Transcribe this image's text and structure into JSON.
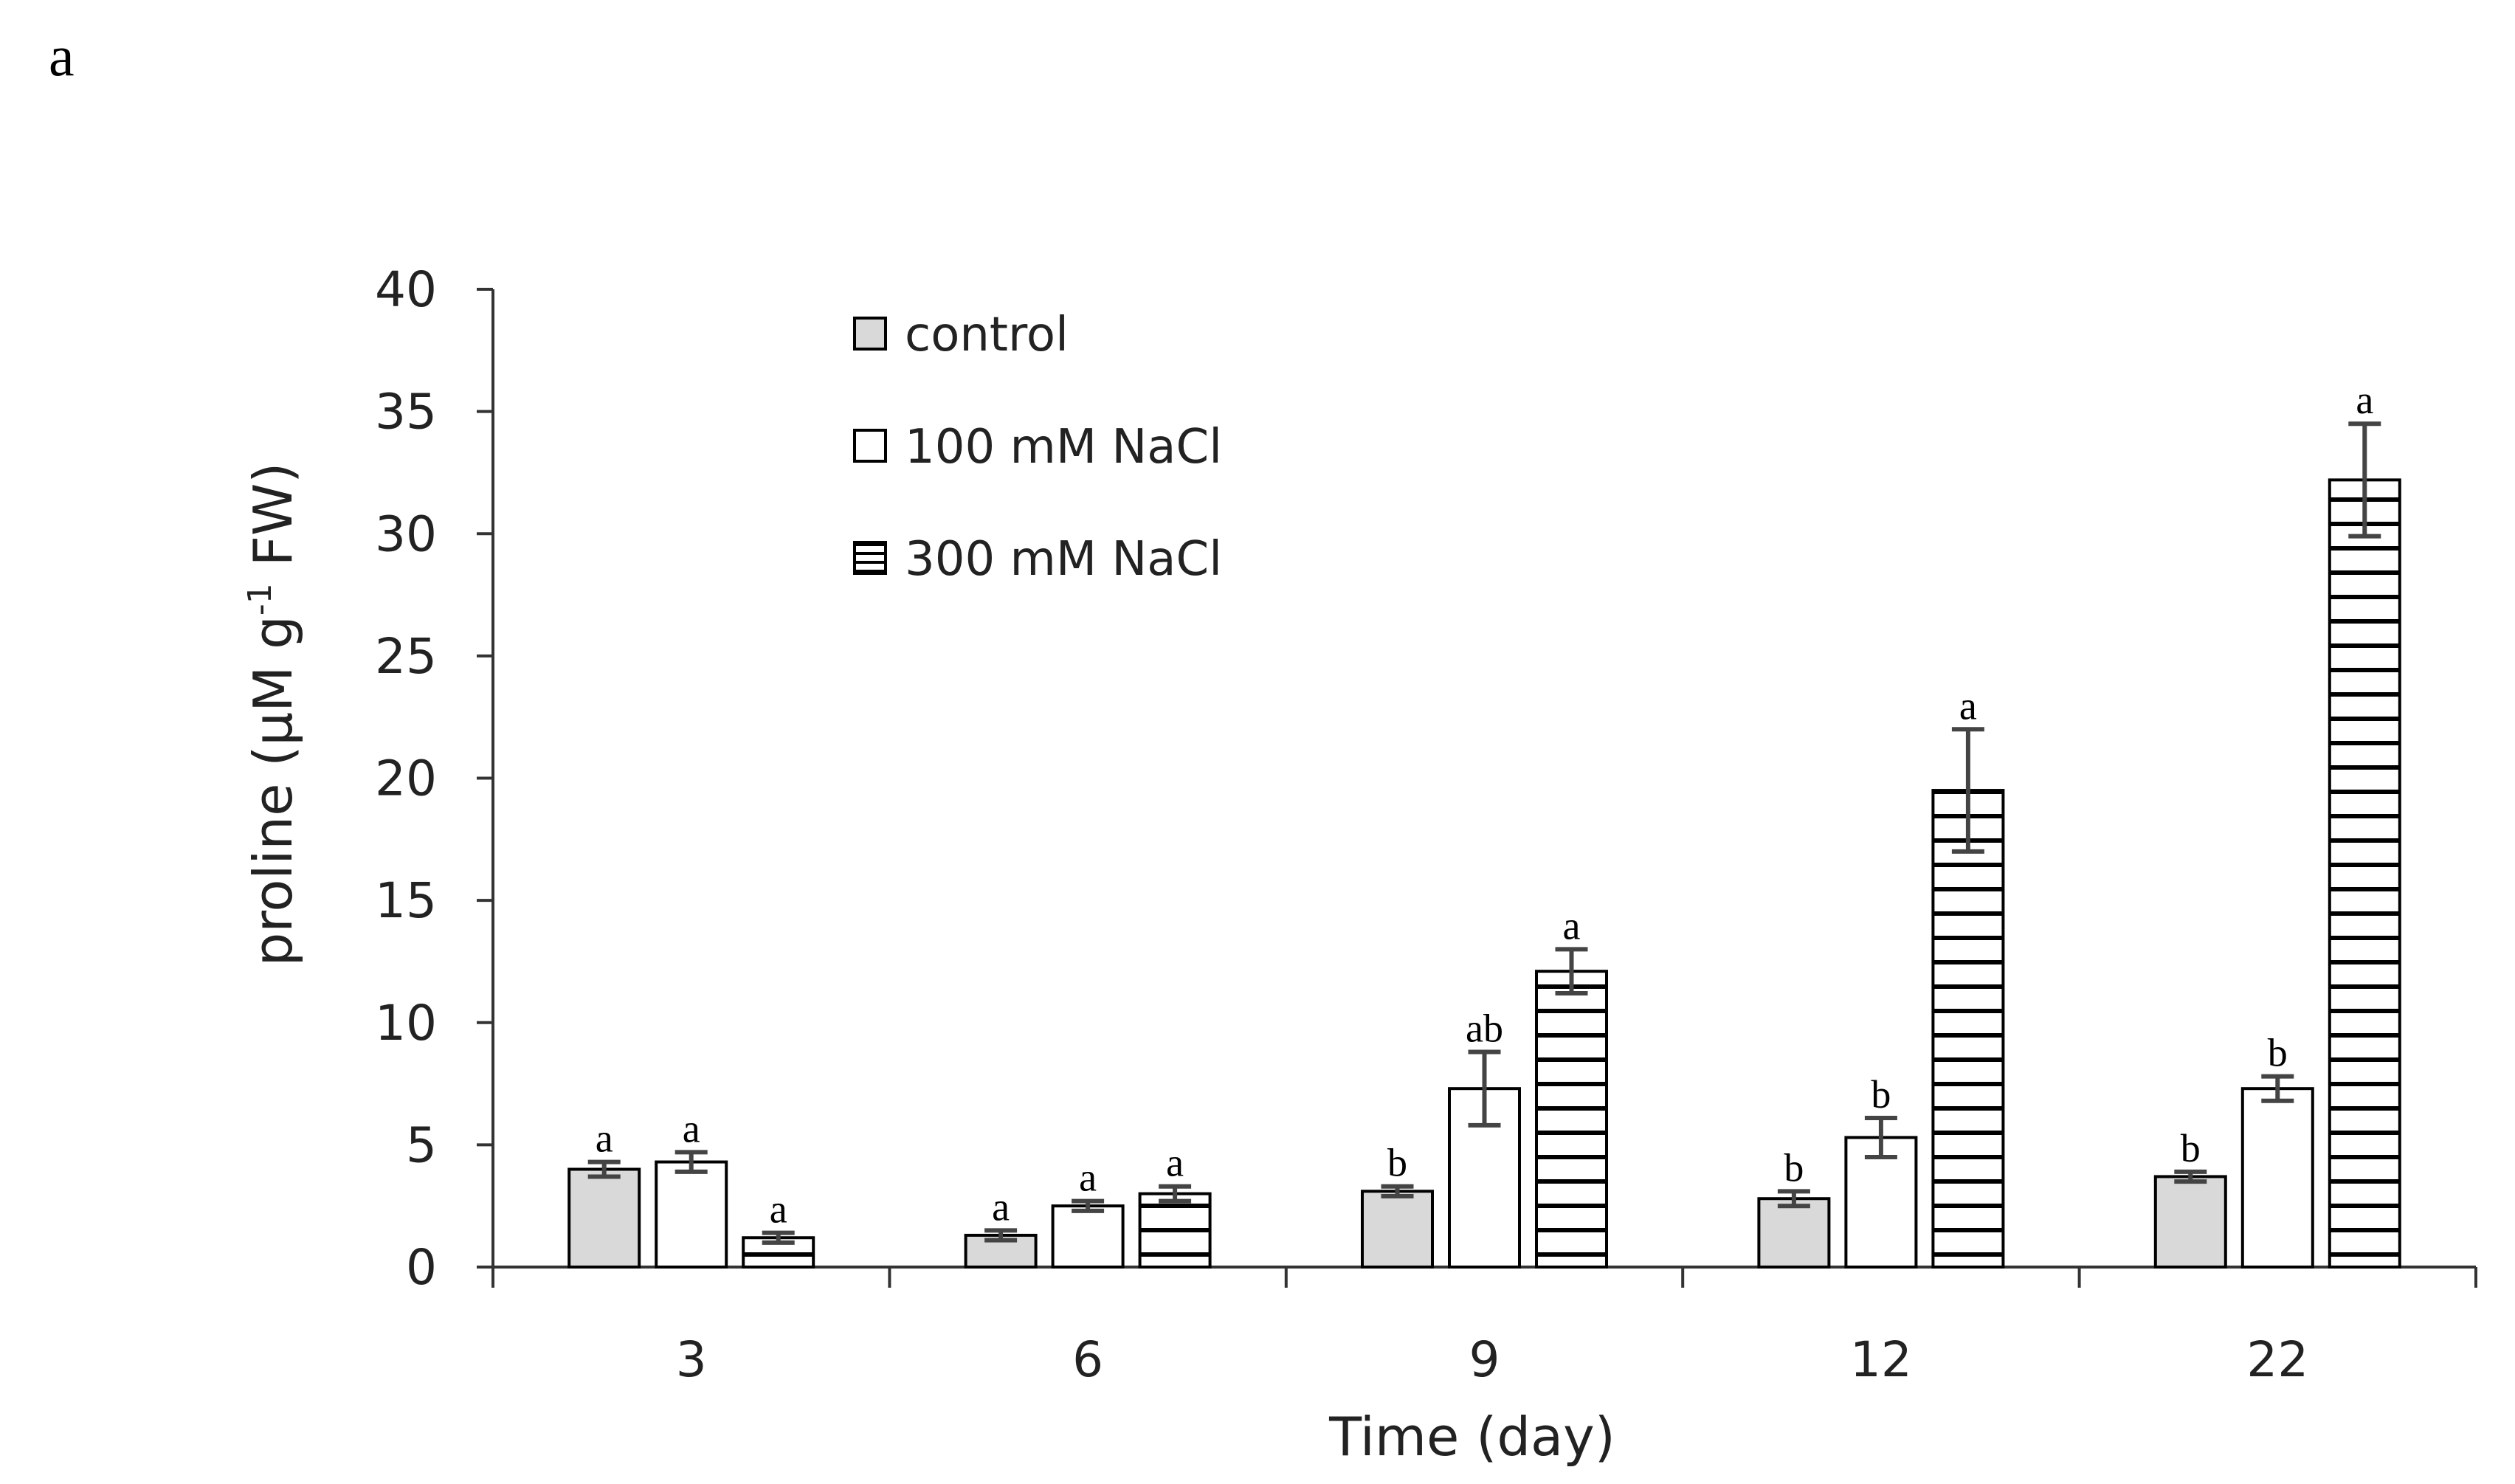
{
  "panel_label": "a",
  "chart_data": {
    "type": "bar",
    "title": "",
    "xlabel": "Time (day)",
    "ylabel_main": "proline (µM g",
    "ylabel_sup": "-1",
    "ylabel_tail": " FW)",
    "ylim": [
      0,
      40
    ],
    "yticks": [
      "0",
      "5",
      "10",
      "15",
      "20",
      "25",
      "30",
      "35",
      "40"
    ],
    "categories": [
      "3",
      "6",
      "9",
      "12",
      "22"
    ],
    "series": [
      {
        "name": "control",
        "pattern": "gray",
        "color": "#d9d9d9",
        "values": [
          4.0,
          1.3,
          3.1,
          2.8,
          3.7
        ],
        "errors": [
          0.3,
          0.2,
          0.2,
          0.3,
          0.2
        ],
        "labels": [
          "a",
          "a",
          "b",
          "b",
          "b"
        ]
      },
      {
        "name": "100 mM NaCl",
        "pattern": "white",
        "color": "#ffffff",
        "values": [
          4.3,
          2.5,
          7.3,
          5.3,
          7.3
        ],
        "errors": [
          0.4,
          0.2,
          1.5,
          0.8,
          0.5
        ],
        "labels": [
          "a",
          "a",
          "ab",
          "b",
          "b"
        ]
      },
      {
        "name": "300 mM NaCl",
        "pattern": "hlines",
        "color": "#ffffff",
        "values": [
          1.2,
          3.0,
          12.1,
          19.5,
          32.2
        ],
        "errors": [
          0.2,
          0.3,
          0.9,
          2.5,
          2.3
        ],
        "labels": [
          "a",
          "a",
          "a",
          "a",
          "a"
        ]
      }
    ],
    "legend_position": "top-left inside"
  }
}
